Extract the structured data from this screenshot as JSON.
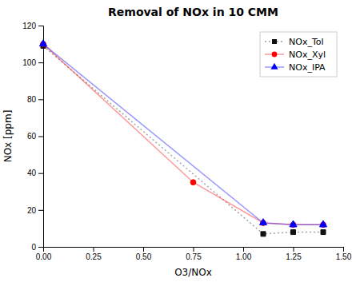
{
  "chart_data": {
    "type": "line",
    "title": "Removal of NOx in 10 CMM",
    "xlabel": "O3/NOx",
    "ylabel": "NOx [ppm]",
    "xlim": [
      0.0,
      1.5
    ],
    "ylim": [
      0,
      120
    ],
    "xticks": [
      {
        "value": 0.0,
        "label": "0.00"
      },
      0.25,
      {
        "value": 0.5,
        "label": "0.50"
      },
      0.75,
      {
        "value": 1.0,
        "label": "1.00"
      },
      1.25,
      {
        "value": 1.5,
        "label": "1.50"
      }
    ],
    "yticks": [
      0,
      20,
      40,
      60,
      80,
      100,
      120
    ],
    "grid": false,
    "legend": "upper right",
    "series": [
      {
        "name": "NOx_Tol",
        "color": "#111111",
        "marker": "square",
        "line_style": "dotted",
        "x": [
          0.0,
          1.1,
          1.25,
          1.4
        ],
        "values": [
          109,
          7,
          8,
          8
        ]
      },
      {
        "name": "NOx_Xyl",
        "color": "#ff0000",
        "marker": "circle",
        "line_style": "solid",
        "x": [
          0.0,
          0.75,
          1.1,
          1.25,
          1.4
        ],
        "values": [
          110,
          35,
          13,
          12,
          12
        ]
      },
      {
        "name": "NOx_IPA",
        "color": "#0000ff",
        "marker": "triangle",
        "line_style": "solid",
        "x": [
          0.0,
          1.1,
          1.25,
          1.4
        ],
        "values": [
          110,
          13,
          12,
          12
        ]
      }
    ]
  }
}
